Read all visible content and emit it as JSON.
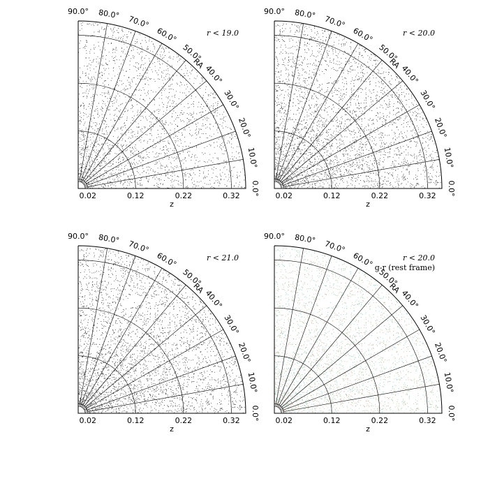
{
  "chart_data": [
    {
      "type": "polar",
      "annotation": [
        "r < 19.0"
      ],
      "xlabel": "z",
      "rlabel": "RA",
      "point_color": "#000000",
      "rlim": [
        0,
        0.35
      ],
      "rticks": [
        0.02,
        0.12,
        0.22,
        0.32
      ],
      "thetalim": [
        0,
        90
      ],
      "thetaticks": [
        {
          "value": 0,
          "label": "0.0°"
        },
        {
          "value": 10,
          "label": "10.0°"
        },
        {
          "value": 20,
          "label": "20.0°"
        },
        {
          "value": 30,
          "label": "30.0°"
        },
        {
          "value": 40,
          "label": "40.0°"
        },
        {
          "value": 50,
          "label": "50.0°"
        },
        {
          "value": 60,
          "label": "60.0°"
        },
        {
          "value": 70,
          "label": "70.0°"
        },
        {
          "value": 80,
          "label": "80.0°"
        },
        {
          "value": 90,
          "label": "90.0°"
        }
      ]
    },
    {
      "type": "polar",
      "annotation": [
        "r < 20.0"
      ],
      "xlabel": "z",
      "rlabel": "RA",
      "point_color": "#000000",
      "rlim": [
        0,
        0.35
      ],
      "rticks": [
        0.02,
        0.12,
        0.22,
        0.32
      ],
      "thetalim": [
        0,
        90
      ],
      "thetaticks": [
        {
          "value": 0,
          "label": "0.0°"
        },
        {
          "value": 10,
          "label": "10.0°"
        },
        {
          "value": 20,
          "label": "20.0°"
        },
        {
          "value": 30,
          "label": "30.0°"
        },
        {
          "value": 40,
          "label": "40.0°"
        },
        {
          "value": 50,
          "label": "50.0°"
        },
        {
          "value": 60,
          "label": "60.0°"
        },
        {
          "value": 70,
          "label": "70.0°"
        },
        {
          "value": 80,
          "label": "80.0°"
        },
        {
          "value": 90,
          "label": "90.0°"
        }
      ]
    },
    {
      "type": "polar",
      "annotation": [
        "r < 21.0"
      ],
      "xlabel": "z",
      "rlabel": "RA",
      "point_color": "#000000",
      "rlim": [
        0,
        0.35
      ],
      "rticks": [
        0.02,
        0.12,
        0.22,
        0.32
      ],
      "thetalim": [
        0,
        90
      ],
      "thetaticks": [
        {
          "value": 0,
          "label": "0.0°"
        },
        {
          "value": 10,
          "label": "10.0°"
        },
        {
          "value": 20,
          "label": "20.0°"
        },
        {
          "value": 30,
          "label": "30.0°"
        },
        {
          "value": 40,
          "label": "40.0°"
        },
        {
          "value": 50,
          "label": "50.0°"
        },
        {
          "value": 60,
          "label": "60.0°"
        },
        {
          "value": 70,
          "label": "70.0°"
        },
        {
          "value": 80,
          "label": "80.0°"
        },
        {
          "value": 90,
          "label": "90.0°"
        }
      ]
    },
    {
      "type": "polar",
      "annotation": [
        "r < 20.0",
        "g-r (rest frame)"
      ],
      "xlabel": "z",
      "rlabel": "RA",
      "point_color": [
        "#3fb8a8",
        "#7fae5a",
        "#b07a55"
      ],
      "rlim": [
        0,
        0.35
      ],
      "rticks": [
        0.02,
        0.12,
        0.22,
        0.32
      ],
      "thetalim": [
        0,
        90
      ],
      "thetaticks": [
        {
          "value": 0,
          "label": "0.0°"
        },
        {
          "value": 10,
          "label": "10.0°"
        },
        {
          "value": 20,
          "label": "20.0°"
        },
        {
          "value": 30,
          "label": "30.0°"
        },
        {
          "value": 40,
          "label": "40.0°"
        },
        {
          "value": 50,
          "label": "50.0°"
        },
        {
          "value": 60,
          "label": "60.0°"
        },
        {
          "value": 70,
          "label": "70.0°"
        },
        {
          "value": 80,
          "label": "80.0°"
        },
        {
          "value": 90,
          "label": "90.0°"
        }
      ]
    }
  ]
}
